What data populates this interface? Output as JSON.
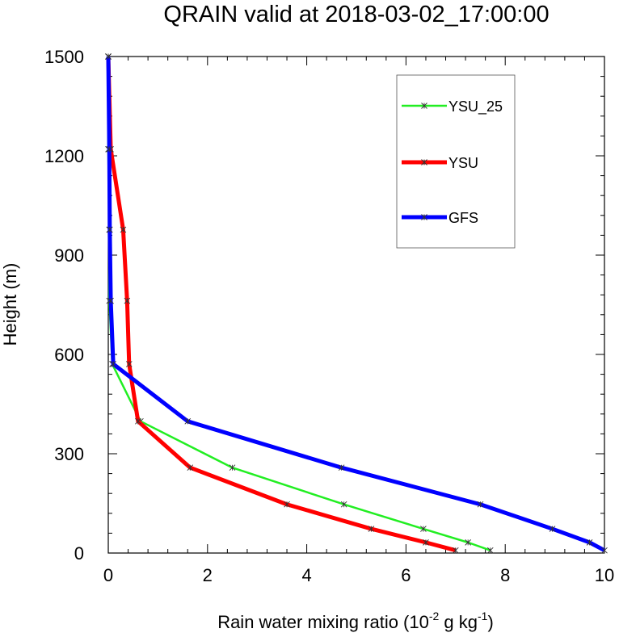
{
  "chart_data": {
    "type": "line",
    "title": "QRAIN valid at 2018-03-02_17:00:00",
    "xlabel": "Rain water mixing ratio (10",
    "xlabel_exp": "-2",
    "xlabel_mid": " g kg",
    "xlabel_exp2": "-1",
    "xlabel_end": ")",
    "ylabel": "Height (m)",
    "xlim": [
      0,
      10
    ],
    "ylim": [
      0,
      1500
    ],
    "xticks": [
      "0",
      "2",
      "4",
      "6",
      "8",
      "10"
    ],
    "yticks": [
      "0",
      "300",
      "600",
      "900",
      "1200",
      "1500"
    ],
    "legend_position": "top-right",
    "series": [
      {
        "name": "YSU_25",
        "color": "#22ee22",
        "points": [
          [
            7.7,
            8
          ],
          [
            7.25,
            32
          ],
          [
            6.35,
            73
          ],
          [
            4.75,
            147
          ],
          [
            2.5,
            258
          ],
          [
            0.65,
            398
          ],
          [
            0.08,
            571
          ],
          [
            0.02,
            762
          ],
          [
            0.02,
            977
          ],
          [
            0.0,
            1220
          ],
          [
            0.0,
            1500
          ]
        ]
      },
      {
        "name": "YSU",
        "color": "#ff0000",
        "points": [
          [
            7.0,
            8
          ],
          [
            6.4,
            32
          ],
          [
            5.3,
            73
          ],
          [
            3.6,
            147
          ],
          [
            1.65,
            258
          ],
          [
            0.6,
            398
          ],
          [
            0.42,
            571
          ],
          [
            0.38,
            762
          ],
          [
            0.3,
            977
          ],
          [
            0.05,
            1220
          ],
          [
            0.0,
            1500
          ]
        ]
      },
      {
        "name": "GFS",
        "color": "#0000ff",
        "points": [
          [
            10.0,
            8
          ],
          [
            9.7,
            32
          ],
          [
            8.95,
            73
          ],
          [
            7.5,
            147
          ],
          [
            4.7,
            258
          ],
          [
            1.6,
            398
          ],
          [
            0.1,
            571
          ],
          [
            0.05,
            762
          ],
          [
            0.03,
            977
          ],
          [
            0.02,
            1220
          ],
          [
            0.0,
            1500
          ]
        ]
      }
    ]
  }
}
